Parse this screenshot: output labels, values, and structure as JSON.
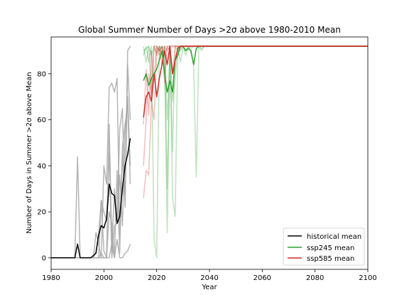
{
  "chart_data": {
    "type": "line",
    "title": "Global Summer Number of Days >2σ above 1980-2010 Mean",
    "xlabel": "Year",
    "ylabel": "Number of Days in Summer >2σ above Mean",
    "xlim": [
      1980,
      2100
    ],
    "ylim": [
      -5,
      96
    ],
    "xticks": [
      1980,
      2000,
      2020,
      2040,
      2060,
      2080,
      2100
    ],
    "yticks": [
      0,
      20,
      40,
      60,
      80
    ],
    "grid": false,
    "legend_position": "lower-right",
    "legend": [
      {
        "label": "historical mean",
        "color": "#000000"
      },
      {
        "label": "ssp245 mean",
        "color": "#2ca02c"
      },
      {
        "label": "ssp585 mean",
        "color": "#d62728"
      }
    ],
    "colors": {
      "historical_member": "#a8a8a8",
      "historical_mean": "#000000",
      "ssp245_member": "#2ca02c",
      "ssp245_mean": "#2ca02c",
      "ssp585_member": "#d62728",
      "ssp585_mean": "#d62728"
    },
    "series": [
      {
        "name": "historical mean",
        "group": "historical",
        "role": "mean",
        "x": [
          1980,
          1981,
          1982,
          1983,
          1984,
          1985,
          1986,
          1987,
          1988,
          1989,
          1990,
          1991,
          1992,
          1993,
          1994,
          1995,
          1996,
          1997,
          1998,
          1999,
          2000,
          2001,
          2002,
          2003,
          2004,
          2005,
          2006,
          2007,
          2008,
          2009,
          2010
        ],
        "y": [
          0,
          0,
          0,
          0,
          0,
          0,
          0,
          0,
          0,
          0,
          6,
          0,
          0,
          0,
          0,
          0,
          1,
          2,
          10,
          14,
          13,
          17,
          32,
          28,
          27,
          15,
          18,
          30,
          40,
          45,
          52
        ]
      },
      {
        "group": "historical",
        "role": "member",
        "x": [
          1980,
          1988,
          1989,
          1990,
          1991,
          1992,
          1996,
          1997,
          1998,
          1999,
          2000,
          2001,
          2002,
          2003,
          2004,
          2005,
          2006,
          2007,
          2008,
          2009,
          2010
        ],
        "y": [
          0,
          0,
          0,
          44,
          0,
          0,
          0,
          11,
          6,
          0,
          40,
          32,
          74,
          76,
          72,
          78,
          10,
          45,
          25,
          90,
          92
        ]
      },
      {
        "group": "historical",
        "role": "member",
        "x": [
          1980,
          1996,
          1997,
          1998,
          1999,
          2000,
          2001,
          2002,
          2003,
          2004,
          2005,
          2006,
          2007,
          2008,
          2009,
          2010
        ],
        "y": [
          0,
          0,
          3,
          10,
          25,
          20,
          16,
          46,
          0,
          14,
          15,
          56,
          65,
          22,
          84,
          60
        ]
      },
      {
        "group": "historical",
        "role": "member",
        "x": [
          1980,
          1997,
          1998,
          1999,
          2000,
          2001,
          2002,
          2003,
          2004,
          2005,
          2006,
          2007,
          2008,
          2009,
          2010
        ],
        "y": [
          0,
          0,
          0,
          25,
          3,
          0,
          20,
          15,
          0,
          38,
          2,
          48,
          58,
          66,
          32
        ]
      },
      {
        "group": "historical",
        "role": "member",
        "x": [
          1980,
          1998,
          1999,
          2000,
          2001,
          2002,
          2003,
          2004,
          2005,
          2006,
          2007,
          2008,
          2009,
          2010
        ],
        "y": [
          0,
          0,
          2,
          0,
          0,
          58,
          4,
          30,
          18,
          36,
          14,
          55,
          70,
          40
        ]
      },
      {
        "group": "historical",
        "role": "member",
        "x": [
          1980,
          2002,
          2003,
          2004,
          2005,
          2006,
          2007,
          2008,
          2009,
          2010
        ],
        "y": [
          0,
          0,
          6,
          0,
          8,
          0,
          0,
          2,
          3,
          6
        ]
      },
      {
        "group": "ssp245",
        "role": "member",
        "x": [
          2015,
          2016,
          2017,
          2018,
          2019,
          2020,
          2021,
          2022,
          2023,
          2024,
          2025,
          2026,
          2027,
          2028,
          2029,
          2030,
          2031,
          2032,
          2033,
          2034,
          2035,
          2036,
          2037,
          2038,
          2100
        ],
        "y": [
          88,
          92,
          85,
          92,
          8,
          0,
          92,
          91,
          92,
          30,
          92,
          26,
          18,
          92,
          85,
          92,
          88,
          92,
          89,
          84,
          35,
          92,
          90,
          92,
          92
        ]
      },
      {
        "group": "ssp245",
        "role": "member",
        "x": [
          2015,
          2016,
          2017,
          2018,
          2019,
          2020,
          2021,
          2022,
          2023,
          2024,
          2025,
          2026,
          2027,
          2028,
          2029,
          2030,
          2031,
          2032,
          2033,
          2034,
          2035,
          2036,
          2037,
          2038,
          2100
        ],
        "y": [
          90,
          91,
          92,
          88,
          92,
          92,
          90,
          92,
          85,
          11,
          92,
          46,
          92,
          90,
          92,
          92,
          90,
          92,
          92,
          92,
          92,
          92,
          91,
          92,
          92
        ]
      },
      {
        "group": "ssp245",
        "role": "member",
        "x": [
          2015,
          2016,
          2017,
          2018,
          2019,
          2020,
          2021,
          2022,
          2023,
          2024,
          2025,
          2026,
          2027,
          2028,
          2029,
          2030,
          2031,
          2032,
          2033,
          2034,
          2035,
          2036,
          2037,
          2038,
          2100
        ],
        "y": [
          92,
          85,
          92,
          72,
          92,
          89,
          92,
          88,
          92,
          60,
          90,
          68,
          78,
          92,
          90,
          92,
          92,
          92,
          91,
          92,
          92,
          92,
          92,
          92,
          92
        ]
      },
      {
        "group": "ssp585",
        "role": "member",
        "x": [
          2015,
          2016,
          2017,
          2018,
          2019,
          2020,
          2021,
          2022,
          2023,
          2024,
          2025,
          2026,
          2027,
          2028,
          2029,
          2030,
          2031,
          2100
        ],
        "y": [
          26,
          38,
          36,
          68,
          60,
          92,
          88,
          92,
          76,
          92,
          90,
          80,
          92,
          92,
          91,
          92,
          92,
          92
        ]
      },
      {
        "group": "ssp585",
        "role": "member",
        "x": [
          2015,
          2016,
          2017,
          2018,
          2019,
          2020,
          2021,
          2022,
          2023,
          2024,
          2025,
          2026,
          2027,
          2028,
          2029,
          2030,
          2100
        ],
        "y": [
          58,
          82,
          62,
          90,
          78,
          92,
          90,
          92,
          88,
          92,
          92,
          92,
          92,
          92,
          92,
          92,
          92
        ]
      },
      {
        "group": "ssp585",
        "role": "member",
        "x": [
          2015,
          2016,
          2017,
          2018,
          2019,
          2020,
          2021,
          2022,
          2023,
          2024,
          2025,
          2026,
          2027,
          2028,
          2029,
          2030,
          2100
        ],
        "y": [
          40,
          60,
          80,
          70,
          92,
          88,
          92,
          84,
          92,
          90,
          92,
          92,
          92,
          92,
          92,
          92,
          92
        ]
      },
      {
        "name": "ssp245 mean",
        "group": "ssp245",
        "role": "mean",
        "x": [
          2015,
          2016,
          2017,
          2018,
          2019,
          2020,
          2021,
          2022,
          2023,
          2024,
          2025,
          2026,
          2027,
          2028,
          2029,
          2030,
          2031,
          2032,
          2033,
          2034,
          2035,
          2036,
          2037,
          2038,
          2100
        ],
        "y": [
          77,
          80,
          75,
          78,
          80,
          82,
          86,
          90,
          80,
          72,
          77,
          72,
          86,
          88,
          92,
          92,
          90,
          91,
          90,
          84,
          91,
          92,
          92,
          92,
          92
        ]
      },
      {
        "name": "ssp585 mean",
        "group": "ssp585",
        "role": "mean",
        "x": [
          2015,
          2016,
          2017,
          2018,
          2019,
          2020,
          2021,
          2022,
          2023,
          2024,
          2025,
          2026,
          2027,
          2028,
          2029,
          2030,
          2031,
          2032,
          2100
        ],
        "y": [
          61,
          70,
          72,
          68,
          80,
          70,
          78,
          84,
          90,
          84,
          92,
          80,
          86,
          91,
          92,
          92,
          92,
          92,
          92
        ]
      }
    ]
  }
}
